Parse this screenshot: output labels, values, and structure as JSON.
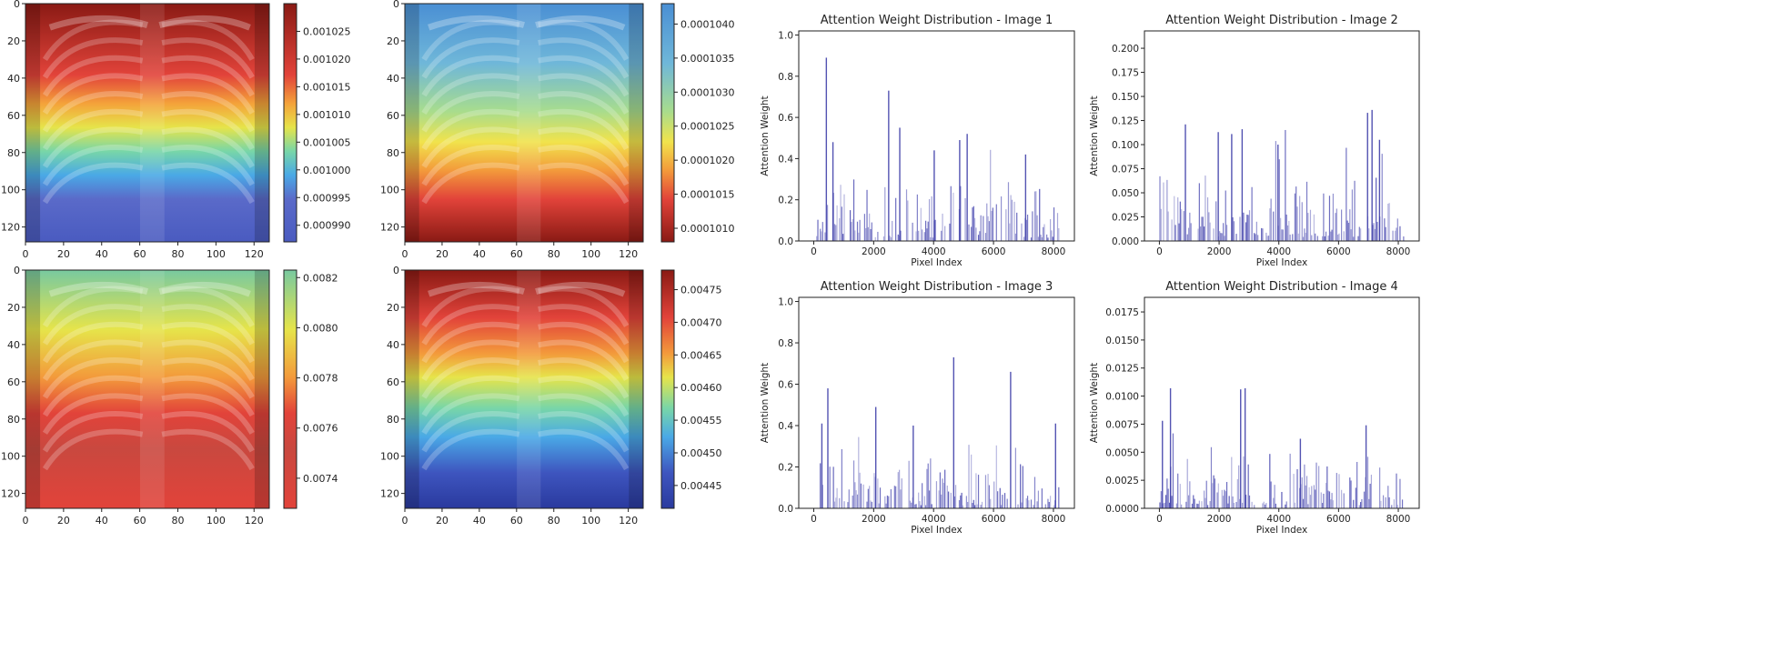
{
  "chart_data": [
    {
      "type": "heatmap",
      "panel": "heatmap-1",
      "overlay": "chest x-ray",
      "xlim": [
        0,
        128
      ],
      "ylim": [
        128,
        0
      ],
      "x_ticks": [
        "0",
        "20",
        "40",
        "60",
        "80",
        "100",
        "120"
      ],
      "y_ticks": [
        "0",
        "20",
        "40",
        "60",
        "80",
        "100",
        "120"
      ],
      "colorbar": {
        "min": 0.000987,
        "max": 0.00103,
        "ticks": [
          "0.001025",
          "0.001020",
          "0.001015",
          "0.001010",
          "0.001005",
          "0.001000",
          "0.000995",
          "0.000990"
        ]
      },
      "gradient": [
        [
          0,
          "#8a1a14"
        ],
        [
          0.3,
          "#e2433a"
        ],
        [
          0.42,
          "#f4a33a"
        ],
        [
          0.52,
          "#e6e44a"
        ],
        [
          0.62,
          "#78d6a8"
        ],
        [
          0.72,
          "#4aa9e6"
        ],
        [
          0.82,
          "#5a6ac9"
        ],
        [
          1,
          "#4a5bc0"
        ]
      ]
    },
    {
      "type": "heatmap",
      "panel": "heatmap-2",
      "overlay": "chest x-ray",
      "xlim": [
        0,
        128
      ],
      "ylim": [
        128,
        0
      ],
      "x_ticks": [
        "0",
        "20",
        "40",
        "60",
        "80",
        "100",
        "120"
      ],
      "y_ticks": [
        "0",
        "20",
        "40",
        "60",
        "80",
        "100",
        "120"
      ],
      "colorbar": {
        "min": 0.0001008,
        "max": 0.0001043,
        "ticks": [
          "0.0001040",
          "0.0001035",
          "0.0001030",
          "0.0001025",
          "0.0001020",
          "0.0001015",
          "0.0001010"
        ]
      },
      "gradient": [
        [
          0,
          "#4a8fd4"
        ],
        [
          0.25,
          "#6fb7d9"
        ],
        [
          0.45,
          "#a7dc8e"
        ],
        [
          0.58,
          "#f1e34c"
        ],
        [
          0.7,
          "#f39a3b"
        ],
        [
          0.82,
          "#e2433a"
        ],
        [
          1,
          "#8a1a14"
        ]
      ]
    },
    {
      "type": "heatmap",
      "panel": "heatmap-3",
      "overlay": "chest x-ray",
      "xlim": [
        0,
        128
      ],
      "ylim": [
        128,
        0
      ],
      "x_ticks": [
        "0",
        "20",
        "40",
        "60",
        "80",
        "100",
        "120"
      ],
      "y_ticks": [
        "0",
        "20",
        "40",
        "60",
        "80",
        "100",
        "120"
      ],
      "colorbar": {
        "min": 0.00728,
        "max": 0.00823,
        "ticks": [
          "0.0082",
          "0.0080",
          "0.0078",
          "0.0076",
          "0.0074"
        ]
      },
      "gradient": [
        [
          0,
          "#78c9a0"
        ],
        [
          0.25,
          "#e6e44a"
        ],
        [
          0.45,
          "#f39a3b"
        ],
        [
          0.6,
          "#e2433a"
        ],
        [
          0.75,
          "#c9483f"
        ],
        [
          1,
          "#e2433a"
        ]
      ]
    },
    {
      "type": "heatmap",
      "panel": "heatmap-4",
      "overlay": "chest x-ray",
      "xlim": [
        0,
        128
      ],
      "ylim": [
        128,
        0
      ],
      "x_ticks": [
        "0",
        "20",
        "40",
        "60",
        "80",
        "100",
        "120"
      ],
      "y_ticks": [
        "0",
        "20",
        "40",
        "60",
        "80",
        "100",
        "120"
      ],
      "colorbar": {
        "min": 0.004415,
        "max": 0.00478,
        "ticks": [
          "0.00475",
          "0.00470",
          "0.00465",
          "0.00460",
          "0.00455",
          "0.00450",
          "0.00445"
        ]
      },
      "gradient": [
        [
          0,
          "#8a1a14"
        ],
        [
          0.2,
          "#e2433a"
        ],
        [
          0.35,
          "#f39a3b"
        ],
        [
          0.45,
          "#e6e44a"
        ],
        [
          0.58,
          "#78d6a8"
        ],
        [
          0.7,
          "#4aa9e6"
        ],
        [
          0.85,
          "#3e55bf"
        ],
        [
          1,
          "#2a3a9e"
        ]
      ]
    },
    {
      "type": "bar",
      "title": "Attention Weight Distribution - Image 1",
      "xlabel": "Pixel Index",
      "ylabel": "Attention Weight",
      "xlim": [
        -500,
        8700
      ],
      "ylim": [
        0,
        1.02
      ],
      "x_ticks": [
        "0",
        "2000",
        "4000",
        "6000",
        "8000"
      ],
      "y_ticks": [
        "0.0",
        "0.2",
        "0.4",
        "0.6",
        "0.8",
        "1.0"
      ],
      "peaks": [
        [
          400,
          0.89
        ],
        [
          620,
          0.48
        ],
        [
          2480,
          0.73
        ],
        [
          2850,
          0.55
        ],
        [
          4850,
          0.49
        ],
        [
          5100,
          0.52
        ],
        [
          4000,
          0.44
        ],
        [
          7050,
          0.42
        ]
      ],
      "base": 0.2,
      "density": 0.55,
      "seed": 11
    },
    {
      "type": "bar",
      "title": "Attention Weight Distribution - Image 2",
      "xlabel": "Pixel Index",
      "ylabel": "Attention Weight",
      "xlim": [
        -500,
        8700
      ],
      "ylim": [
        0,
        0.218
      ],
      "x_ticks": [
        "0",
        "2000",
        "4000",
        "6000",
        "8000"
      ],
      "y_ticks": [
        "0.000",
        "0.025",
        "0.050",
        "0.075",
        "0.100",
        "0.125",
        "0.150",
        "0.175",
        "0.200"
      ],
      "peaks": [
        [
          850,
          0.121
        ],
        [
          1950,
          0.113
        ],
        [
          2400,
          0.111
        ],
        [
          2750,
          0.116
        ],
        [
          3950,
          0.1
        ],
        [
          6950,
          0.133
        ],
        [
          7100,
          0.136
        ],
        [
          7350,
          0.105
        ]
      ],
      "base": 0.05,
      "density": 0.6,
      "seed": 23
    },
    {
      "type": "bar",
      "title": "Attention Weight Distribution - Image 3",
      "xlabel": "Pixel Index",
      "ylabel": "Attention Weight",
      "xlim": [
        -500,
        8700
      ],
      "ylim": [
        0,
        1.02
      ],
      "x_ticks": [
        "0",
        "2000",
        "4000",
        "6000",
        "8000"
      ],
      "y_ticks": [
        "0.0",
        "0.2",
        "0.4",
        "0.6",
        "0.8",
        "1.0"
      ],
      "peaks": [
        [
          450,
          0.58
        ],
        [
          250,
          0.41
        ],
        [
          2050,
          0.49
        ],
        [
          4650,
          0.73
        ],
        [
          6550,
          0.66
        ],
        [
          3300,
          0.4
        ],
        [
          8050,
          0.41
        ]
      ],
      "base": 0.18,
      "density": 0.55,
      "seed": 37
    },
    {
      "type": "bar",
      "title": "Attention Weight Distribution - Image 4",
      "xlabel": "Pixel Index",
      "ylabel": "Attention Weight",
      "xlim": [
        -500,
        8700
      ],
      "ylim": [
        0,
        0.0188
      ],
      "x_ticks": [
        "0",
        "2000",
        "4000",
        "6000",
        "8000"
      ],
      "y_ticks": [
        "0.0000",
        "0.0025",
        "0.0050",
        "0.0075",
        "0.0100",
        "0.0125",
        "0.0150",
        "0.0175"
      ],
      "peaks": [
        [
          80,
          0.0078
        ],
        [
          350,
          0.0107
        ],
        [
          2700,
          0.0106
        ],
        [
          2850,
          0.0107
        ],
        [
          6900,
          0.0074
        ],
        [
          4700,
          0.0062
        ]
      ],
      "base": 0.0035,
      "density": 0.6,
      "seed": 53
    }
  ]
}
